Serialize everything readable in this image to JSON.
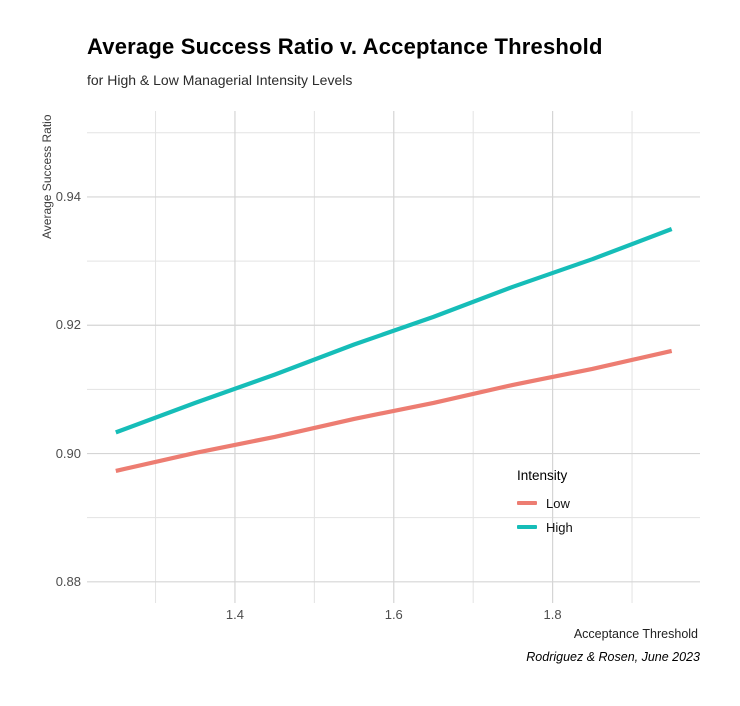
{
  "chart_data": {
    "type": "line",
    "title": "Average Success Ratio v. Acceptance Threshold",
    "subtitle": "for High & Low Managerial Intensity Levels",
    "caption": "Rodriguez & Rosen, June 2023",
    "xlabel": "Acceptance Threshold",
    "ylabel": "Average Success Ratio",
    "x": [
      1.25,
      1.35,
      1.45,
      1.55,
      1.65,
      1.75,
      1.85,
      1.95
    ],
    "series": [
      {
        "name": "Low",
        "color": "#ED7D72",
        "values": [
          0.8973,
          0.9001,
          0.9026,
          0.9054,
          0.9079,
          0.9107,
          0.9132,
          0.916
        ]
      },
      {
        "name": "High",
        "color": "#16BDB8",
        "values": [
          0.9033,
          0.9079,
          0.9123,
          0.917,
          0.9213,
          0.926,
          0.9303,
          0.935
        ]
      }
    ],
    "legend": {
      "title": "Intensity",
      "position": "inside right",
      "items": [
        {
          "label": "Low",
          "series": "Low"
        },
        {
          "label": "High",
          "series": "High"
        }
      ]
    },
    "axes": {
      "xlim": [
        1.2137,
        1.9856
      ],
      "ylim": [
        0.8767,
        0.9534
      ],
      "x_ticks": {
        "values": [
          1.4,
          1.6,
          1.8
        ],
        "labels": [
          "1.4",
          "1.6",
          "1.8"
        ]
      },
      "y_ticks": {
        "values": [
          0.88,
          0.9,
          0.92,
          0.94
        ],
        "labels": [
          "0.88",
          "0.90",
          "0.92",
          "0.94"
        ]
      },
      "x_minor_gridlines": [
        1.3,
        1.5,
        1.7,
        1.9
      ],
      "y_minor_gridlines": [
        0.89,
        0.91,
        0.93,
        0.95
      ],
      "grid": "on"
    },
    "colors": {
      "background": "#FFFFFF",
      "grid_major": "#D5D5D5",
      "grid_minor": "#E3E3E3",
      "tick_text": "#4D4D4D",
      "low": "#ED7D72",
      "high": "#16BDB8"
    }
  }
}
